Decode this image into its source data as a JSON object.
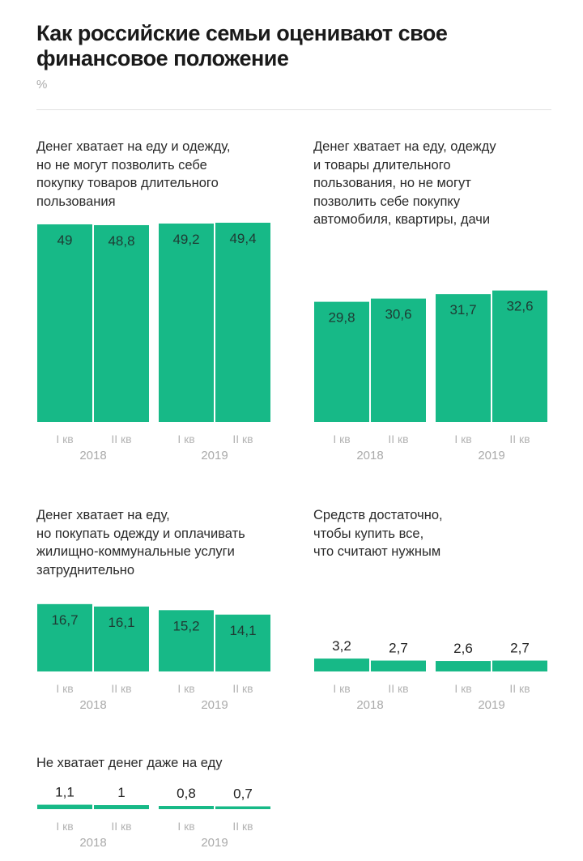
{
  "header": {
    "title": "Как российские семьи оценивают свое финансовое положение",
    "unit": "%"
  },
  "colors": {
    "bar": "#17b987",
    "axis_label": "#b3b3b3"
  },
  "chart_data": [
    {
      "type": "bar",
      "title": "Денег хватает на еду и одежду,\nно не могут позволить себе\nпокупку товаров длительного\nпользования",
      "ylabel": "%",
      "categories": [
        "I кв 2018",
        "II кв 2018",
        "I кв 2019",
        "II кв 2019"
      ],
      "quarters": [
        "I кв",
        "II кв",
        "I кв",
        "II кв"
      ],
      "years": [
        "2018",
        "2019"
      ],
      "values": [
        49,
        48.8,
        49.2,
        49.4
      ],
      "labels": [
        "49",
        "48,8",
        "49,2",
        "49,4"
      ]
    },
    {
      "type": "bar",
      "title": "Денег хватает на еду, одежду\nи  товары длительного\nпользования, но не могут\nпозволить себе покупку\nавтомобиля, квартиры, дачи",
      "ylabel": "%",
      "categories": [
        "I кв 2018",
        "II кв 2018",
        "I кв 2019",
        "II кв 2019"
      ],
      "quarters": [
        "I кв",
        "II кв",
        "I кв",
        "II кв"
      ],
      "years": [
        "2018",
        "2019"
      ],
      "values": [
        29.8,
        30.6,
        31.7,
        32.6
      ],
      "labels": [
        "29,8",
        "30,6",
        "31,7",
        "32,6"
      ]
    },
    {
      "type": "bar",
      "title": "Денег хватает на еду,\nно покупать одежду и оплачивать\nжилищно-коммунальные услуги\nзатруднительно",
      "ylabel": "%",
      "categories": [
        "I кв 2018",
        "II кв 2018",
        "I кв 2019",
        "II кв 2019"
      ],
      "quarters": [
        "I кв",
        "II кв",
        "I кв",
        "II кв"
      ],
      "years": [
        "2018",
        "2019"
      ],
      "values": [
        16.7,
        16.1,
        15.2,
        14.1
      ],
      "labels": [
        "16,7",
        "16,1",
        "15,2",
        "14,1"
      ]
    },
    {
      "type": "bar",
      "title": "Средств достаточно,\nчтобы купить все,\nчто считают нужным",
      "ylabel": "%",
      "categories": [
        "I кв 2018",
        "II кв 2018",
        "I кв 2019",
        "II кв 2019"
      ],
      "quarters": [
        "I кв",
        "II кв",
        "I кв",
        "II кв"
      ],
      "years": [
        "2018",
        "2019"
      ],
      "values": [
        3.2,
        2.7,
        2.6,
        2.7
      ],
      "labels": [
        "3,2",
        "2,7",
        "2,6",
        "2,7"
      ]
    },
    {
      "type": "bar",
      "title": "Не хватает денег даже на еду",
      "ylabel": "%",
      "categories": [
        "I кв 2018",
        "II кв 2018",
        "I кв 2019",
        "II кв 2019"
      ],
      "quarters": [
        "I кв",
        "II кв",
        "I кв",
        "II кв"
      ],
      "years": [
        "2018",
        "2019"
      ],
      "values": [
        1.1,
        1,
        0.8,
        0.7
      ],
      "labels": [
        "1,1",
        "1",
        "0,8",
        "0,7"
      ]
    }
  ]
}
